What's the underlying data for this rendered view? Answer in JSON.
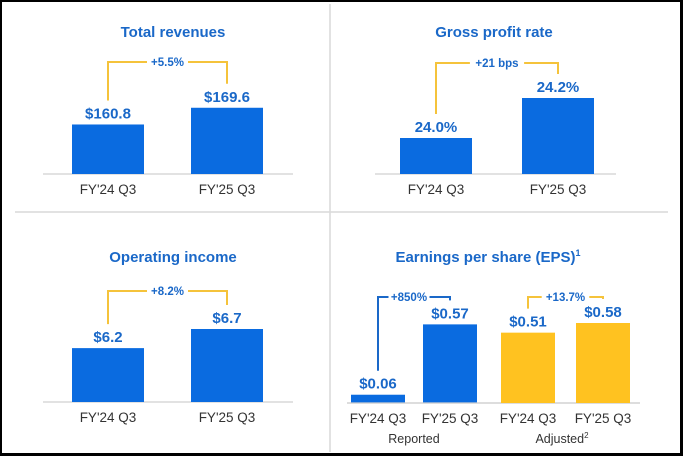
{
  "colors": {
    "blue": "#0a6be0",
    "yellow": "#ffc220",
    "title": "#1a68c8",
    "bracket_yellow": "#f5c33b",
    "bracket_blue": "#1a68c8"
  },
  "chart_data": [
    {
      "type": "bar",
      "title": "Total revenues",
      "categories": [
        "FY'24 Q3",
        "FY'25 Q3"
      ],
      "values": [
        160.8,
        169.6
      ],
      "labels": [
        "$160.8",
        "$169.6"
      ],
      "change": "+5.5%",
      "unit": "$B"
    },
    {
      "type": "bar",
      "title": "Gross profit rate",
      "categories": [
        "FY'24 Q3",
        "FY'25 Q3"
      ],
      "values": [
        24.0,
        24.2
      ],
      "labels": [
        "24.0%",
        "24.2%"
      ],
      "change": "+21 bps",
      "unit": "%"
    },
    {
      "type": "bar",
      "title": "Operating income",
      "categories": [
        "FY'24 Q3",
        "FY'25 Q3"
      ],
      "values": [
        6.2,
        6.7
      ],
      "labels": [
        "$6.2",
        "$6.7"
      ],
      "change": "+8.2%",
      "unit": "$B"
    },
    {
      "type": "bar",
      "title": "Earnings per share (EPS)",
      "title_superscript": "1",
      "categories": [
        "FY'24 Q3",
        "FY'25 Q3",
        "FY'24 Q3",
        "FY'25 Q3"
      ],
      "groups": [
        {
          "name": "Reported",
          "superscript": "",
          "values": [
            0.06,
            0.57
          ],
          "labels": [
            "$0.06",
            "$0.57"
          ],
          "change": "+850%",
          "color": "blue"
        },
        {
          "name": "Adjusted",
          "superscript": "2",
          "values": [
            0.51,
            0.58
          ],
          "labels": [
            "$0.51",
            "$0.58"
          ],
          "change": "+13.7%",
          "color": "yellow"
        }
      ],
      "unit": "$"
    }
  ]
}
